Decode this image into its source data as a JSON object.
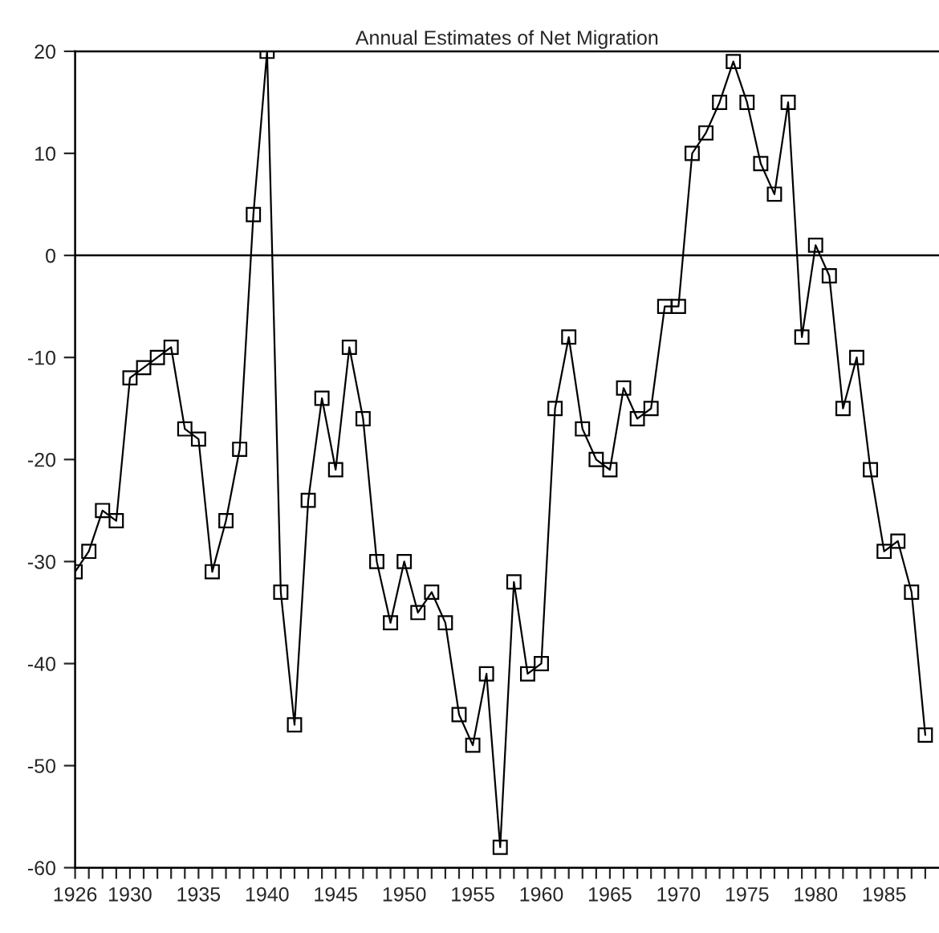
{
  "chart_data": {
    "type": "line",
    "title": "Annual Estimates of Net Migration",
    "x": [
      1926,
      1927,
      1928,
      1929,
      1930,
      1931,
      1932,
      1933,
      1934,
      1935,
      1936,
      1937,
      1938,
      1939,
      1940,
      1941,
      1942,
      1943,
      1944,
      1945,
      1946,
      1947,
      1948,
      1949,
      1950,
      1951,
      1952,
      1953,
      1954,
      1955,
      1956,
      1957,
      1958,
      1959,
      1960,
      1961,
      1962,
      1963,
      1964,
      1965,
      1966,
      1967,
      1968,
      1969,
      1970,
      1971,
      1972,
      1973,
      1974,
      1975,
      1976,
      1977,
      1978,
      1979,
      1980,
      1981,
      1982,
      1983,
      1984,
      1985,
      1986,
      1987,
      1988
    ],
    "series": [
      {
        "color": "#000000",
        "values": [
          -31,
          -29,
          -25,
          -26,
          -12,
          -11,
          -10,
          -9,
          -17,
          -18,
          -31,
          -26,
          -19,
          4,
          20,
          -33,
          -46,
          -24,
          -14,
          -21,
          -9,
          -16,
          -30,
          -36,
          -30,
          -35,
          -33,
          -36,
          -45,
          -48,
          -41,
          -58,
          -32,
          -41,
          -40,
          -15,
          -8,
          -17,
          -20,
          -21,
          -13,
          -16,
          -15,
          -5,
          -5,
          10,
          12,
          15,
          19,
          15,
          9,
          6,
          15,
          -8,
          1,
          -2,
          -15,
          -10,
          -21,
          -29,
          -28,
          -33,
          -47
        ]
      }
    ],
    "xlim": [
      1926,
      1989
    ],
    "xticks": [
      1926,
      {
        "value": 1927,
        "label": null
      },
      {
        "value": 1928,
        "label": null
      },
      {
        "value": 1929,
        "label": null
      },
      1930,
      {
        "value": 1931,
        "label": null
      },
      {
        "value": 1932,
        "label": null
      },
      {
        "value": 1933,
        "label": null
      },
      {
        "value": 1934,
        "label": null
      },
      1935,
      {
        "value": 1936,
        "label": null
      },
      {
        "value": 1937,
        "label": null
      },
      {
        "value": 1938,
        "label": null
      },
      {
        "value": 1939,
        "label": null
      },
      1940,
      {
        "value": 1941,
        "label": null
      },
      {
        "value": 1942,
        "label": null
      },
      {
        "value": 1943,
        "label": null
      },
      {
        "value": 1944,
        "label": null
      },
      1945,
      {
        "value": 1946,
        "label": null
      },
      {
        "value": 1947,
        "label": null
      },
      {
        "value": 1948,
        "label": null
      },
      {
        "value": 1949,
        "label": null
      },
      1950,
      {
        "value": 1951,
        "label": null
      },
      {
        "value": 1952,
        "label": null
      },
      {
        "value": 1953,
        "label": null
      },
      {
        "value": 1954,
        "label": null
      },
      1955,
      {
        "value": 1956,
        "label": null
      },
      {
        "value": 1957,
        "label": null
      },
      {
        "value": 1958,
        "label": null
      },
      {
        "value": 1959,
        "label": null
      },
      1960,
      {
        "value": 1961,
        "label": null
      },
      {
        "value": 1962,
        "label": null
      },
      {
        "value": 1963,
        "label": null
      },
      {
        "value": 1964,
        "label": null
      },
      1965,
      {
        "value": 1966,
        "label": null
      },
      {
        "value": 1967,
        "label": null
      },
      {
        "value": 1968,
        "label": null
      },
      {
        "value": 1969,
        "label": null
      },
      1970,
      {
        "value": 1971,
        "label": null
      },
      {
        "value": 1972,
        "label": null
      },
      {
        "value": 1973,
        "label": null
      },
      {
        "value": 1974,
        "label": null
      },
      1975,
      {
        "value": 1976,
        "label": null
      },
      {
        "value": 1977,
        "label": null
      },
      {
        "value": 1978,
        "label": null
      },
      {
        "value": 1979,
        "label": null
      },
      1980,
      {
        "value": 1981,
        "label": null
      },
      {
        "value": 1982,
        "label": null
      },
      {
        "value": 1983,
        "label": null
      },
      {
        "value": 1984,
        "label": null
      },
      1985,
      {
        "value": 1986,
        "label": null
      },
      {
        "value": 1987,
        "label": null
      },
      {
        "value": 1988,
        "label": null
      }
    ],
    "ylim": [
      -60,
      20
    ],
    "yticks": [
      -60,
      -50,
      -40,
      -30,
      -20,
      -10,
      0,
      10,
      20
    ],
    "ref_lines": [
      {
        "axis": "y",
        "value": 0,
        "color": "#000000"
      }
    ],
    "grid": false,
    "marker": "square",
    "line_style": "solid",
    "legend": false
  }
}
